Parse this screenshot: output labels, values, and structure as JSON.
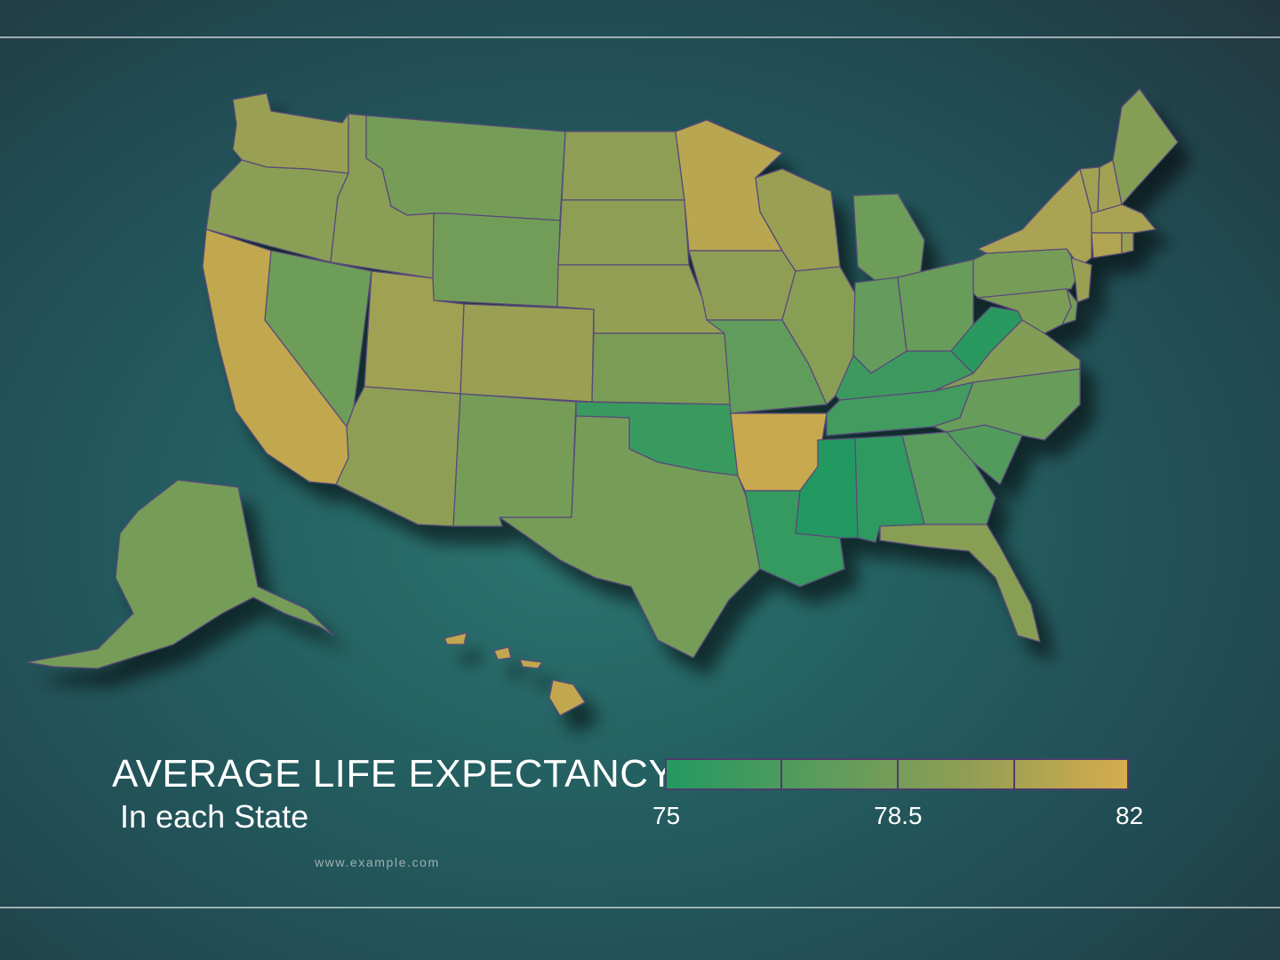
{
  "title": "AVERAGE LIFE EXPECTANCY",
  "subtitle": "In each State",
  "source": "www.example.com",
  "legend": {
    "min_label": "75",
    "mid_label": "78.5",
    "max_label": "82",
    "min": 75,
    "max": 82,
    "steps": 4,
    "colors": [
      "#239960",
      "#5d9c5c",
      "#8f9e54",
      "#d7ac4e"
    ]
  },
  "colors": {
    "background": "#245f61",
    "border": "#5a4a7a",
    "scale_low": "#239960",
    "scale_high": "#d7ac4e"
  },
  "states": [
    {
      "name": "Washington",
      "value": 80.0
    },
    {
      "name": "Oregon",
      "value": 79.5
    },
    {
      "name": "California",
      "value": 81.3
    },
    {
      "name": "Nevada",
      "value": 78.1
    },
    {
      "name": "Idaho",
      "value": 79.5
    },
    {
      "name": "Montana",
      "value": 78.4
    },
    {
      "name": "Wyoming",
      "value": 78.3
    },
    {
      "name": "Utah",
      "value": 80.2
    },
    {
      "name": "Colorado",
      "value": 80.0
    },
    {
      "name": "Arizona",
      "value": 79.6
    },
    {
      "name": "New Mexico",
      "value": 78.4
    },
    {
      "name": "North Dakota",
      "value": 79.6
    },
    {
      "name": "South Dakota",
      "value": 79.6
    },
    {
      "name": "Nebraska",
      "value": 79.8
    },
    {
      "name": "Kansas",
      "value": 78.7
    },
    {
      "name": "Oklahoma",
      "value": 75.9
    },
    {
      "name": "Texas",
      "value": 78.5
    },
    {
      "name": "Minnesota",
      "value": 81.0
    },
    {
      "name": "Iowa",
      "value": 79.7
    },
    {
      "name": "Missouri",
      "value": 77.5
    },
    {
      "name": "Arkansas",
      "value": 81.5
    },
    {
      "name": "Louisiana",
      "value": 75.7
    },
    {
      "name": "Wisconsin",
      "value": 80.0
    },
    {
      "name": "Illinois",
      "value": 79.4
    },
    {
      "name": "Michigan",
      "value": 78.1
    },
    {
      "name": "Indiana",
      "value": 77.6
    },
    {
      "name": "Ohio",
      "value": 77.8
    },
    {
      "name": "Kentucky",
      "value": 76.0
    },
    {
      "name": "Tennessee",
      "value": 76.3
    },
    {
      "name": "Mississippi",
      "value": 75.0
    },
    {
      "name": "Alabama",
      "value": 75.4
    },
    {
      "name": "Georgia",
      "value": 77.2
    },
    {
      "name": "Florida",
      "value": 79.4
    },
    {
      "name": "South Carolina",
      "value": 76.9
    },
    {
      "name": "North Carolina",
      "value": 77.8
    },
    {
      "name": "Virginia",
      "value": 79.0
    },
    {
      "name": "West Virginia",
      "value": 75.3
    },
    {
      "name": "Pennsylvania",
      "value": 78.5
    },
    {
      "name": "New York",
      "value": 80.5
    },
    {
      "name": "New Jersey",
      "value": 80.0
    },
    {
      "name": "Maryland",
      "value": 78.8
    },
    {
      "name": "Delaware",
      "value": 78.4
    },
    {
      "name": "Vermont",
      "value": 80.2
    },
    {
      "name": "New Hampshire",
      "value": 80.3
    },
    {
      "name": "Maine",
      "value": 79.2
    },
    {
      "name": "Massachusetts",
      "value": 80.5
    },
    {
      "name": "Connecticut",
      "value": 80.8
    },
    {
      "name": "Rhode Island",
      "value": 80.0
    },
    {
      "name": "Alaska",
      "value": 78.4
    },
    {
      "name": "Hawaii",
      "value": 81.3
    }
  ]
}
